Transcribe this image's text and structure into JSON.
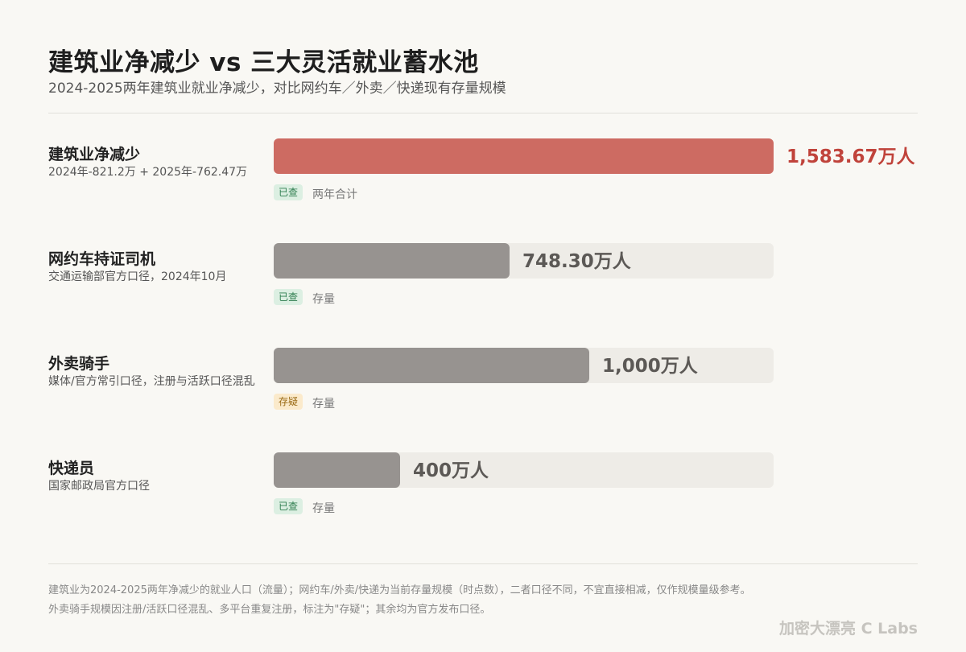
{
  "chart_data": {
    "type": "bar",
    "orientation": "horizontal",
    "title": "建筑业净减少 vs 三大灵活就业蓄水池",
    "subtitle": "2024-2025两年建筑业就业净减少，对比网约车／外卖／快递现有存量规模",
    "unit": "万人",
    "xlim": [
      0,
      1583.67
    ],
    "categories": [
      "建筑业净减少",
      "网约车持证司机",
      "外卖骑手",
      "快递员"
    ],
    "values": [
      1583.67,
      748.3,
      1000,
      400
    ],
    "rows": [
      {
        "name": "建筑业净减少",
        "subtitle": "2024年-821.2万 + 2025年-762.47万",
        "value": 1583.67,
        "value_label": "1,583.67万人",
        "badge": "已查",
        "badge_type": "verified",
        "note": "两年合计",
        "highlight": true
      },
      {
        "name": "网约车持证司机",
        "subtitle": "交通运输部官方口径，2024年10月",
        "value": 748.3,
        "value_label": "748.30万人",
        "badge": "已查",
        "badge_type": "verified",
        "note": "存量",
        "highlight": false
      },
      {
        "name": "外卖骑手",
        "subtitle": "媒体/官方常引口径，注册与活跃口径混乱",
        "value": 1000,
        "value_label": "1,000万人",
        "badge": "存疑",
        "badge_type": "doubt",
        "note": "存量",
        "highlight": false
      },
      {
        "name": "快递员",
        "subtitle": "国家邮政局官方口径",
        "value": 400,
        "value_label": "400万人",
        "badge": "已查",
        "badge_type": "verified",
        "note": "存量",
        "highlight": false
      }
    ]
  },
  "footnotes": [
    "建筑业为2024-2025两年净减少的就业人口（流量）；网约车/外卖/快递为当前存量规模（时点数），二者口径不同，不宜直接相减，仅作规模量级参考。",
    "外卖骑手规模因注册/活跃口径混乱、多平台重复注册，标注为\"存疑\"；其余均为官方发布口径。"
  ],
  "brand": "加密大漂亮 C Labs",
  "colors": {
    "highlight_bar": "#cd6b62",
    "highlight_text": "#c0433b",
    "normal_bar": "#979390",
    "track": "#eeece7",
    "verified_badge_bg": "#dcefe2",
    "doubt_badge_bg": "#fbeacb"
  }
}
